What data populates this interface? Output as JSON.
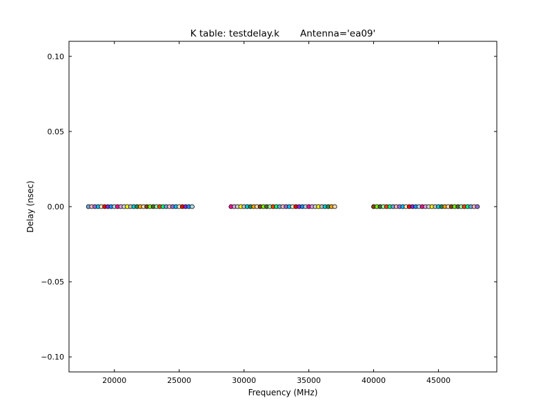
{
  "chart_data": {
    "type": "scatter",
    "title": "K table: testdelay.k       Antenna='ea09'",
    "xlabel": "Frequency (MHz)",
    "ylabel": "Delay (nsec)",
    "xlim": [
      16500,
      49500
    ],
    "ylim": [
      -0.11,
      0.11
    ],
    "xticks": [
      20000,
      25000,
      30000,
      35000,
      40000,
      45000
    ],
    "xtick_labels": [
      "20000",
      "25000",
      "30000",
      "35000",
      "40000",
      "45000"
    ],
    "yticks": [
      0.1,
      0.05,
      0.0,
      -0.05,
      -0.1
    ],
    "ytick_labels": [
      "0.10",
      "0.05",
      "0.00",
      "−0.05",
      "−0.10"
    ],
    "grid": false,
    "marker": "circle",
    "point_colors": [
      "#6fa8dc",
      "#1e90ff",
      "#00ced1",
      "#98fb98",
      "#ffe4b5",
      "#d3d3d3",
      "#8b4513",
      "#ffb6c1",
      "#add8e6",
      "#2e8b57",
      "#ff4500",
      "#ff0000",
      "#ffff00",
      "#7cfc00",
      "#9370db",
      "#ff1493",
      "#ffa500",
      "#00ff7f",
      "#8a2be2",
      "#c0c0c0",
      "#556b2f",
      "#00bfff",
      "#dda0dd",
      "#f5deb3"
    ],
    "series": [
      {
        "x": [
          18000,
          18250,
          18500,
          18750,
          19000,
          19250,
          19500,
          19750,
          20000,
          20250,
          20500,
          20750,
          21000,
          21250,
          21500,
          21750,
          22000,
          22250,
          22500,
          22750,
          23000,
          23250,
          23500,
          23750,
          24000,
          24250,
          24500,
          24750,
          25000,
          25250,
          25500,
          25750,
          26000
        ],
        "y": 0.0
      },
      {
        "x": [
          29000,
          29250,
          29500,
          29750,
          30000,
          30250,
          30500,
          30750,
          31000,
          31250,
          31500,
          31750,
          32000,
          32250,
          32500,
          32750,
          33000,
          33250,
          33500,
          33750,
          34000,
          34250,
          34500,
          34750,
          35000,
          35250,
          35500,
          35750,
          36000,
          36250,
          36500,
          36750,
          37000
        ],
        "y": 0.0
      },
      {
        "x": [
          40000,
          40250,
          40500,
          40750,
          41000,
          41250,
          41500,
          41750,
          42000,
          42250,
          42500,
          42750,
          43000,
          43250,
          43500,
          43750,
          44000,
          44250,
          44500,
          44750,
          45000,
          45250,
          45500,
          45750,
          46000,
          46250,
          46500,
          46750,
          47000,
          47250,
          47500,
          47750,
          48000
        ],
        "y": 0.0
      }
    ]
  }
}
